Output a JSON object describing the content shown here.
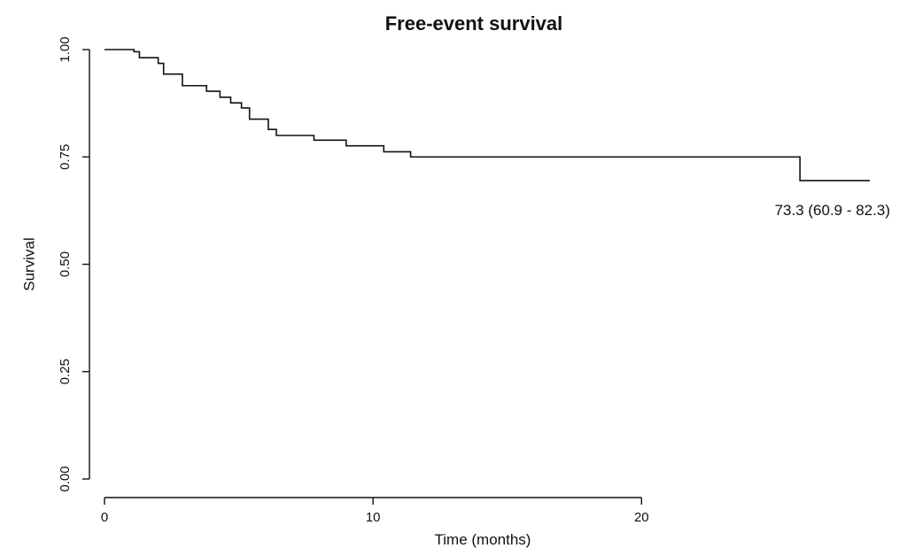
{
  "chart_data": {
    "type": "line",
    "step": true,
    "title": "Free-event survival",
    "xlabel": "Time (months)",
    "ylabel": "Survival",
    "xlim": [
      0,
      28.5
    ],
    "ylim": [
      0,
      1
    ],
    "xticks": [
      0,
      10,
      20
    ],
    "xtick_labels": [
      "0",
      "10",
      "20"
    ],
    "yticks": [
      0,
      0.25,
      0.5,
      0.75,
      1
    ],
    "ytick_labels": [
      "0.00",
      "0.25",
      "0.50",
      "0.75",
      "1.00"
    ],
    "grid": false,
    "series": [
      {
        "x": [
          0,
          1.1,
          1.3,
          2.0,
          2.2,
          2.9,
          3.8,
          4.3,
          4.7,
          5.1,
          5.4,
          6.1,
          6.4,
          7.8,
          9.0,
          10.4,
          11.4,
          25.9,
          28.5
        ],
        "y": [
          1.0,
          0.995,
          0.981,
          0.968,
          0.943,
          0.916,
          0.903,
          0.889,
          0.876,
          0.864,
          0.838,
          0.814,
          0.8,
          0.789,
          0.776,
          0.762,
          0.75,
          0.695,
          0.695
        ]
      }
    ],
    "annotations": [
      {
        "text": "73.3 (60.9 - 82.3)",
        "x": 28.5,
        "y": 0.695
      }
    ]
  }
}
